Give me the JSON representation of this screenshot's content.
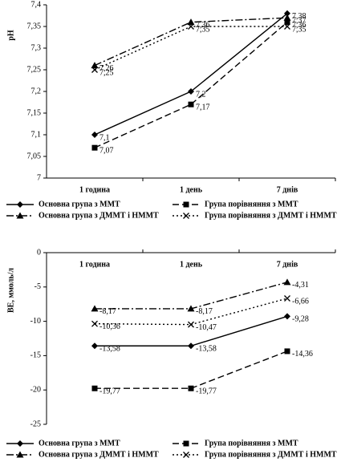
{
  "chart_data": [
    {
      "type": "line",
      "ylabel": "pH",
      "categories": [
        "1 година",
        "1 день",
        "7 днів"
      ],
      "xaxis_position": "bottom",
      "ylim": [
        7,
        7.4
      ],
      "yticks": [
        7,
        {
          "value": 7.05,
          "label": "7,05"
        },
        {
          "value": 7.1,
          "label": "7,1"
        },
        {
          "value": 7.15,
          "label": "7,15"
        },
        {
          "value": 7.2,
          "label": "7,2"
        },
        {
          "value": 7.25,
          "label": "7,25"
        },
        {
          "value": 7.3,
          "label": "7,3"
        },
        {
          "value": 7.35,
          "label": "7,35"
        },
        {
          "value": 7.4,
          "label": "7,4"
        }
      ],
      "series": [
        {
          "name": "Основна група з ММТ",
          "color": "#000000",
          "dash": "solid",
          "marker": "diamond",
          "values": [
            7.1,
            7.2,
            7.38
          ],
          "value_labels": [
            "7,1",
            "7,2",
            "7,38"
          ]
        },
        {
          "name": "Група порівняння з ММТ",
          "color": "#000000",
          "dash": "dashed",
          "marker": "square",
          "values": [
            7.07,
            7.17,
            7.36
          ],
          "value_labels": [
            "7,07",
            "7,17",
            "7,36"
          ]
        },
        {
          "name": "Основна група з ДММТ і НММТ",
          "color": "#000000",
          "dash": "dashdot",
          "marker": "triangle",
          "values": [
            7.26,
            7.36,
            7.37
          ],
          "value_labels": [
            "7,26",
            "7,36",
            "7,37"
          ]
        },
        {
          "name": "Група порівняння з ДММТ і НММТ",
          "color": "#000000",
          "dash": "dotted",
          "marker": "x",
          "values": [
            7.25,
            7.35,
            7.35
          ],
          "value_labels": [
            "7,25",
            "7,35",
            "7,35"
          ]
        }
      ]
    },
    {
      "type": "line",
      "ylabel": "BE, ммоль/л",
      "categories": [
        "1 година",
        "1 день",
        "7 днів"
      ],
      "xaxis_position": "top",
      "ylim": [
        -25,
        0
      ],
      "yticks": [
        -25,
        -20,
        -15,
        -10,
        -5,
        0
      ],
      "series": [
        {
          "name": "Основна група з ММТ",
          "color": "#000000",
          "dash": "solid",
          "marker": "diamond",
          "values": [
            -13.58,
            -13.58,
            -9.28
          ],
          "value_labels": [
            "-13,58",
            "-13,58",
            "-9,28"
          ]
        },
        {
          "name": "Група порівняння з ММТ",
          "color": "#000000",
          "dash": "dashed",
          "marker": "square",
          "values": [
            -19.77,
            -19.77,
            -14.36
          ],
          "value_labels": [
            "-19,77",
            "-19,77",
            "-14,36"
          ]
        },
        {
          "name": "Основна група з ДММТ і НММТ",
          "color": "#000000",
          "dash": "dashdot",
          "marker": "triangle",
          "values": [
            -8.17,
            -8.17,
            -4.31
          ],
          "value_labels": [
            "-8,17",
            "-8,17",
            "-4,31"
          ]
        },
        {
          "name": "Група порівняння з ДММТ і НММТ",
          "color": "#000000",
          "dash": "dotted",
          "marker": "x",
          "values": [
            -10.36,
            -10.47,
            -6.66
          ],
          "value_labels": [
            "-10,36",
            "-10,47",
            "-6,66"
          ]
        }
      ]
    }
  ]
}
